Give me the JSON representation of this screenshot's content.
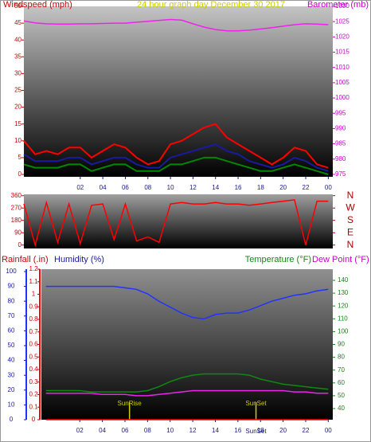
{
  "chart_data": [
    {
      "type": "line",
      "title": "24 hour graph day    December 30 2017",
      "y_label": "Windspeed (mph)",
      "y2_label": "Barometer (mb)",
      "x": [
        -3,
        -2,
        -1,
        0,
        1,
        2,
        3,
        4,
        5,
        6,
        7,
        8,
        9,
        10,
        11,
        12,
        13,
        14,
        15,
        16,
        17,
        18,
        19,
        20,
        21,
        22,
        23,
        24
      ],
      "xlim": [
        -3,
        24.4
      ],
      "xticks": [
        {
          "value": 2,
          "label": "02"
        },
        {
          "value": 4,
          "label": "04"
        },
        {
          "value": 6,
          "label": "06"
        },
        {
          "value": 8,
          "label": "08"
        },
        10,
        12,
        14,
        16,
        18,
        20,
        22,
        {
          "value": 24,
          "label": "00"
        }
      ],
      "ylim": [
        -0.7,
        50
      ],
      "yticks": [
        0,
        5,
        10,
        15,
        20,
        25,
        30,
        35,
        40,
        45,
        50
      ],
      "y2lim": [
        974.2,
        1030
      ],
      "y2ticks": [
        975,
        980,
        985,
        990,
        995,
        1000,
        1005,
        1010,
        1015,
        1020,
        1025,
        1030
      ],
      "series": [
        {
          "color": "#ff0000",
          "values": [
            10,
            6,
            7,
            6,
            8,
            8,
            5,
            7,
            9,
            8,
            5,
            3,
            4,
            9,
            10,
            12,
            14,
            15,
            11,
            9,
            7,
            5,
            3,
            5,
            8,
            7,
            3,
            2
          ]
        },
        {
          "color": "#1a1aa0",
          "values": [
            6,
            4,
            4,
            4,
            5,
            5,
            3,
            4,
            5,
            5,
            3,
            2,
            2,
            5,
            6,
            7,
            8,
            9,
            7,
            6,
            4,
            3,
            2,
            3,
            5,
            4,
            2,
            1
          ]
        },
        {
          "color": "#008800",
          "values": [
            3,
            2,
            2,
            2,
            3,
            3,
            1,
            2,
            3,
            3,
            1,
            1,
            1,
            3,
            3,
            4,
            5,
            5,
            4,
            3,
            2,
            1,
            1,
            2,
            3,
            2,
            1,
            0
          ]
        },
        {
          "color": "#ee22ee",
          "axis": "y2",
          "values": [
            1025.2,
            1024.6,
            1024.3,
            1024.2,
            1024.2,
            1024.3,
            1024.3,
            1024.4,
            1024.5,
            1024.5,
            1024.8,
            1025.1,
            1025.4,
            1025.7,
            1025.5,
            1024.3,
            1023.2,
            1022.4,
            1022,
            1022,
            1022.2,
            1022.6,
            1023,
            1023.5,
            1024,
            1024.3,
            1024.2,
            1024
          ]
        }
      ]
    },
    {
      "type": "line",
      "x": [
        -3,
        -2,
        -1,
        0,
        1,
        2,
        3,
        4,
        5,
        6,
        7,
        8,
        9,
        10,
        11,
        12,
        13,
        14,
        15,
        16,
        17,
        18,
        19,
        20,
        21,
        22,
        23,
        24
      ],
      "xlim": [
        -3,
        24.4
      ],
      "ylim": [
        -25,
        370
      ],
      "yticks": [
        0,
        90,
        180,
        270,
        360
      ],
      "y2lim": [
        -25,
        370
      ],
      "y2ticks": [
        {
          "value": 360,
          "label": "N"
        },
        {
          "value": 270,
          "label": "W"
        },
        {
          "value": 180,
          "label": "S"
        },
        {
          "value": 90,
          "label": "E"
        },
        {
          "value": 0,
          "label": "N"
        }
      ],
      "series": [
        {
          "color": "#ff0000",
          "values": [
            300,
            0,
            310,
            20,
            300,
            10,
            290,
            300,
            40,
            300,
            30,
            60,
            20,
            300,
            310,
            300,
            300,
            310,
            300,
            300,
            290,
            300,
            310,
            320,
            330,
            0,
            320,
            320
          ]
        }
      ]
    },
    {
      "type": "line",
      "x": [
        -1,
        0,
        1,
        2,
        3,
        4,
        5,
        6,
        7,
        8,
        9,
        10,
        11,
        12,
        13,
        14,
        15,
        16,
        17,
        18,
        19,
        20,
        21,
        22,
        23,
        24
      ],
      "xlim": [
        -1.4,
        24.4
      ],
      "xticks": [
        {
          "value": 2,
          "label": "02"
        },
        {
          "value": 4,
          "label": "04"
        },
        {
          "value": 6,
          "label": "06"
        },
        {
          "value": 8,
          "label": "08"
        },
        10,
        12,
        14,
        16,
        18,
        20,
        22,
        {
          "value": 24,
          "label": "00"
        }
      ],
      "ylim": [
        0,
        1.2
      ],
      "yticks": [
        0,
        0.1,
        0.2,
        0.3,
        0.4,
        0.5,
        0.6,
        0.7,
        0.8,
        0.9,
        1,
        1.1,
        1.2
      ],
      "y3lim": [
        0,
        101.6
      ],
      "y3ticks": [
        0,
        10,
        20,
        30,
        40,
        50,
        60,
        70,
        80,
        90,
        100
      ],
      "y2lim": [
        31.3,
        148.7
      ],
      "y2ticks": [
        40,
        50,
        60,
        70,
        80,
        90,
        100,
        110,
        120,
        130,
        140
      ],
      "series": [
        {
          "name": "Rainfall (.in)",
          "color": "#ff0000",
          "values": [
            0,
            0,
            0,
            0,
            0,
            0,
            0,
            0,
            0,
            0,
            0,
            0,
            0,
            0,
            0,
            0,
            0,
            0,
            0,
            0,
            0,
            0,
            0,
            0,
            0,
            0
          ]
        },
        {
          "name": "Humidity (%)",
          "color": "#2233ff",
          "axis": "y3",
          "values": [
            90,
            90,
            90,
            90,
            90,
            90,
            90,
            89,
            88,
            85,
            80,
            76,
            72,
            69,
            68,
            71,
            72,
            72,
            74,
            77,
            80,
            82,
            84,
            85,
            87,
            88
          ]
        },
        {
          "name": "Temperature (°F)",
          "color": "#118811",
          "axis": "y2",
          "values": [
            54,
            54,
            54,
            54,
            53,
            53,
            53,
            53,
            53,
            54,
            57,
            61,
            64,
            66,
            67,
            67,
            67,
            67,
            66,
            63,
            61,
            59,
            58,
            57,
            56,
            55
          ]
        },
        {
          "name": "Dew Point (°F)",
          "color": "#ee22ee",
          "axis": "y2",
          "values": [
            52,
            52,
            52,
            52,
            52,
            51,
            51,
            51,
            50,
            50,
            51,
            52,
            53,
            54,
            54,
            54,
            54,
            54,
            54,
            54,
            54,
            54,
            53,
            53,
            52,
            52
          ]
        }
      ],
      "annotations": [
        {
          "label": "SunRise",
          "x": 6.4
        },
        {
          "label": "SunSet",
          "x": 17.6
        },
        {
          "label": "SunSet",
          "x": 17.6
        }
      ]
    }
  ]
}
